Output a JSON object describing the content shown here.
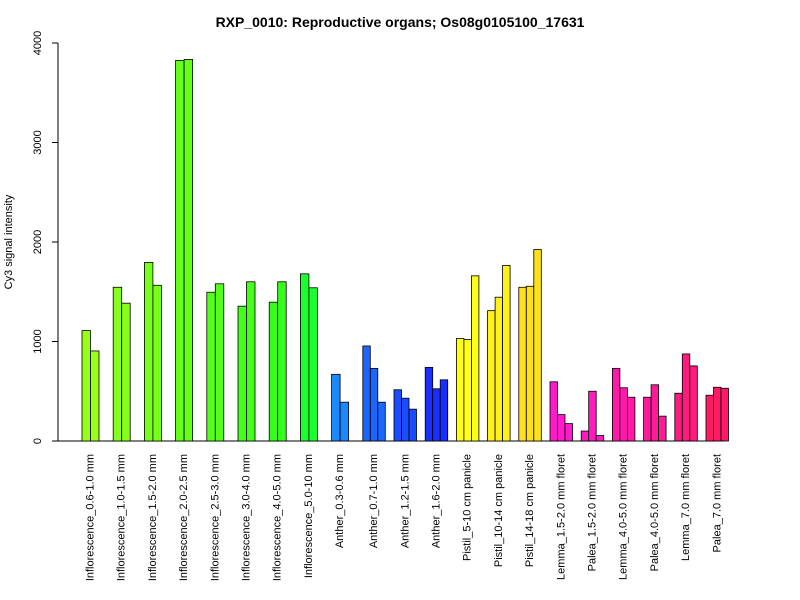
{
  "chart_data": {
    "type": "bar",
    "title": "RXP_0010: Reproductive organs; Os08g0105100_17631",
    "xlabel": "",
    "ylabel": "Cy3 signal intensity",
    "ylim": [
      0,
      4000
    ],
    "yticks": [
      "0",
      "1000",
      "2000",
      "3000",
      "4000"
    ],
    "grid": false,
    "groups": [
      {
        "label": "Inflorescence_0.6-1.0 mm",
        "color": "#99ff19",
        "values": [
          1110,
          905
        ]
      },
      {
        "label": "Inflorescence_1.0-1.5 mm",
        "color": "#88ff1a",
        "values": [
          1545,
          1385
        ]
      },
      {
        "label": "Inflorescence_1.5-2.0 mm",
        "color": "#77ff1a",
        "values": [
          1795,
          1565
        ]
      },
      {
        "label": "Inflorescence_2.0-2.5 mm",
        "color": "#66ff1a",
        "values": [
          3825,
          3835
        ]
      },
      {
        "label": "Inflorescence_2.5-3.0 mm",
        "color": "#55ff1a",
        "values": [
          1495,
          1580
        ]
      },
      {
        "label": "Inflorescence_3.0-4.0 mm",
        "color": "#44ff1a",
        "values": [
          1355,
          1600
        ]
      },
      {
        "label": "Inflorescence_4.0-5.0 mm",
        "color": "#33ff1a",
        "values": [
          1395,
          1600
        ]
      },
      {
        "label": "Inflorescence_5.0-10 mm",
        "color": "#1aff2e",
        "values": [
          1680,
          1540
        ]
      },
      {
        "label": "Anther_0.3-0.6 mm",
        "color": "#1a88ff",
        "values": [
          670,
          390
        ]
      },
      {
        "label": "Anther_0.7-1.0 mm",
        "color": "#1a66ff",
        "values": [
          955,
          730,
          390
        ]
      },
      {
        "label": "Anther_1.2-1.5 mm",
        "color": "#1a4dff",
        "values": [
          515,
          430,
          320
        ]
      },
      {
        "label": "Anther_1.6-2.0 mm",
        "color": "#1a2eff",
        "values": [
          740,
          525,
          615
        ]
      },
      {
        "label": "Pistil_5-10 cm panicle",
        "color": "#ffff1a",
        "values": [
          1030,
          1020,
          1660
        ]
      },
      {
        "label": "Pistil_10-14 cm panicle",
        "color": "#fff21a",
        "values": [
          1310,
          1445,
          1765
        ]
      },
      {
        "label": "Pistil_14-18 cm panicle",
        "color": "#ffe01a",
        "values": [
          1545,
          1555,
          1925
        ]
      },
      {
        "label": "Lemma_1.5-2.0 mm floret",
        "color": "#ff1acc",
        "values": [
          595,
          265,
          175
        ]
      },
      {
        "label": "Palea_1.5-2.0 mm floret",
        "color": "#ff1ac0",
        "values": [
          100,
          500,
          55
        ]
      },
      {
        "label": "Lemma_4.0-5.0 mm floret",
        "color": "#ff1aaa",
        "values": [
          730,
          535,
          440
        ]
      },
      {
        "label": "Palea_4.0-5.0 mm floret",
        "color": "#ff1a99",
        "values": [
          440,
          565,
          250
        ]
      },
      {
        "label": "Lemma_7.0 mm floret",
        "color": "#ff1a80",
        "values": [
          480,
          875,
          755
        ]
      },
      {
        "label": "Palea_7.0 mm floret",
        "color": "#ff1a66",
        "values": [
          460,
          540,
          530
        ]
      }
    ]
  }
}
